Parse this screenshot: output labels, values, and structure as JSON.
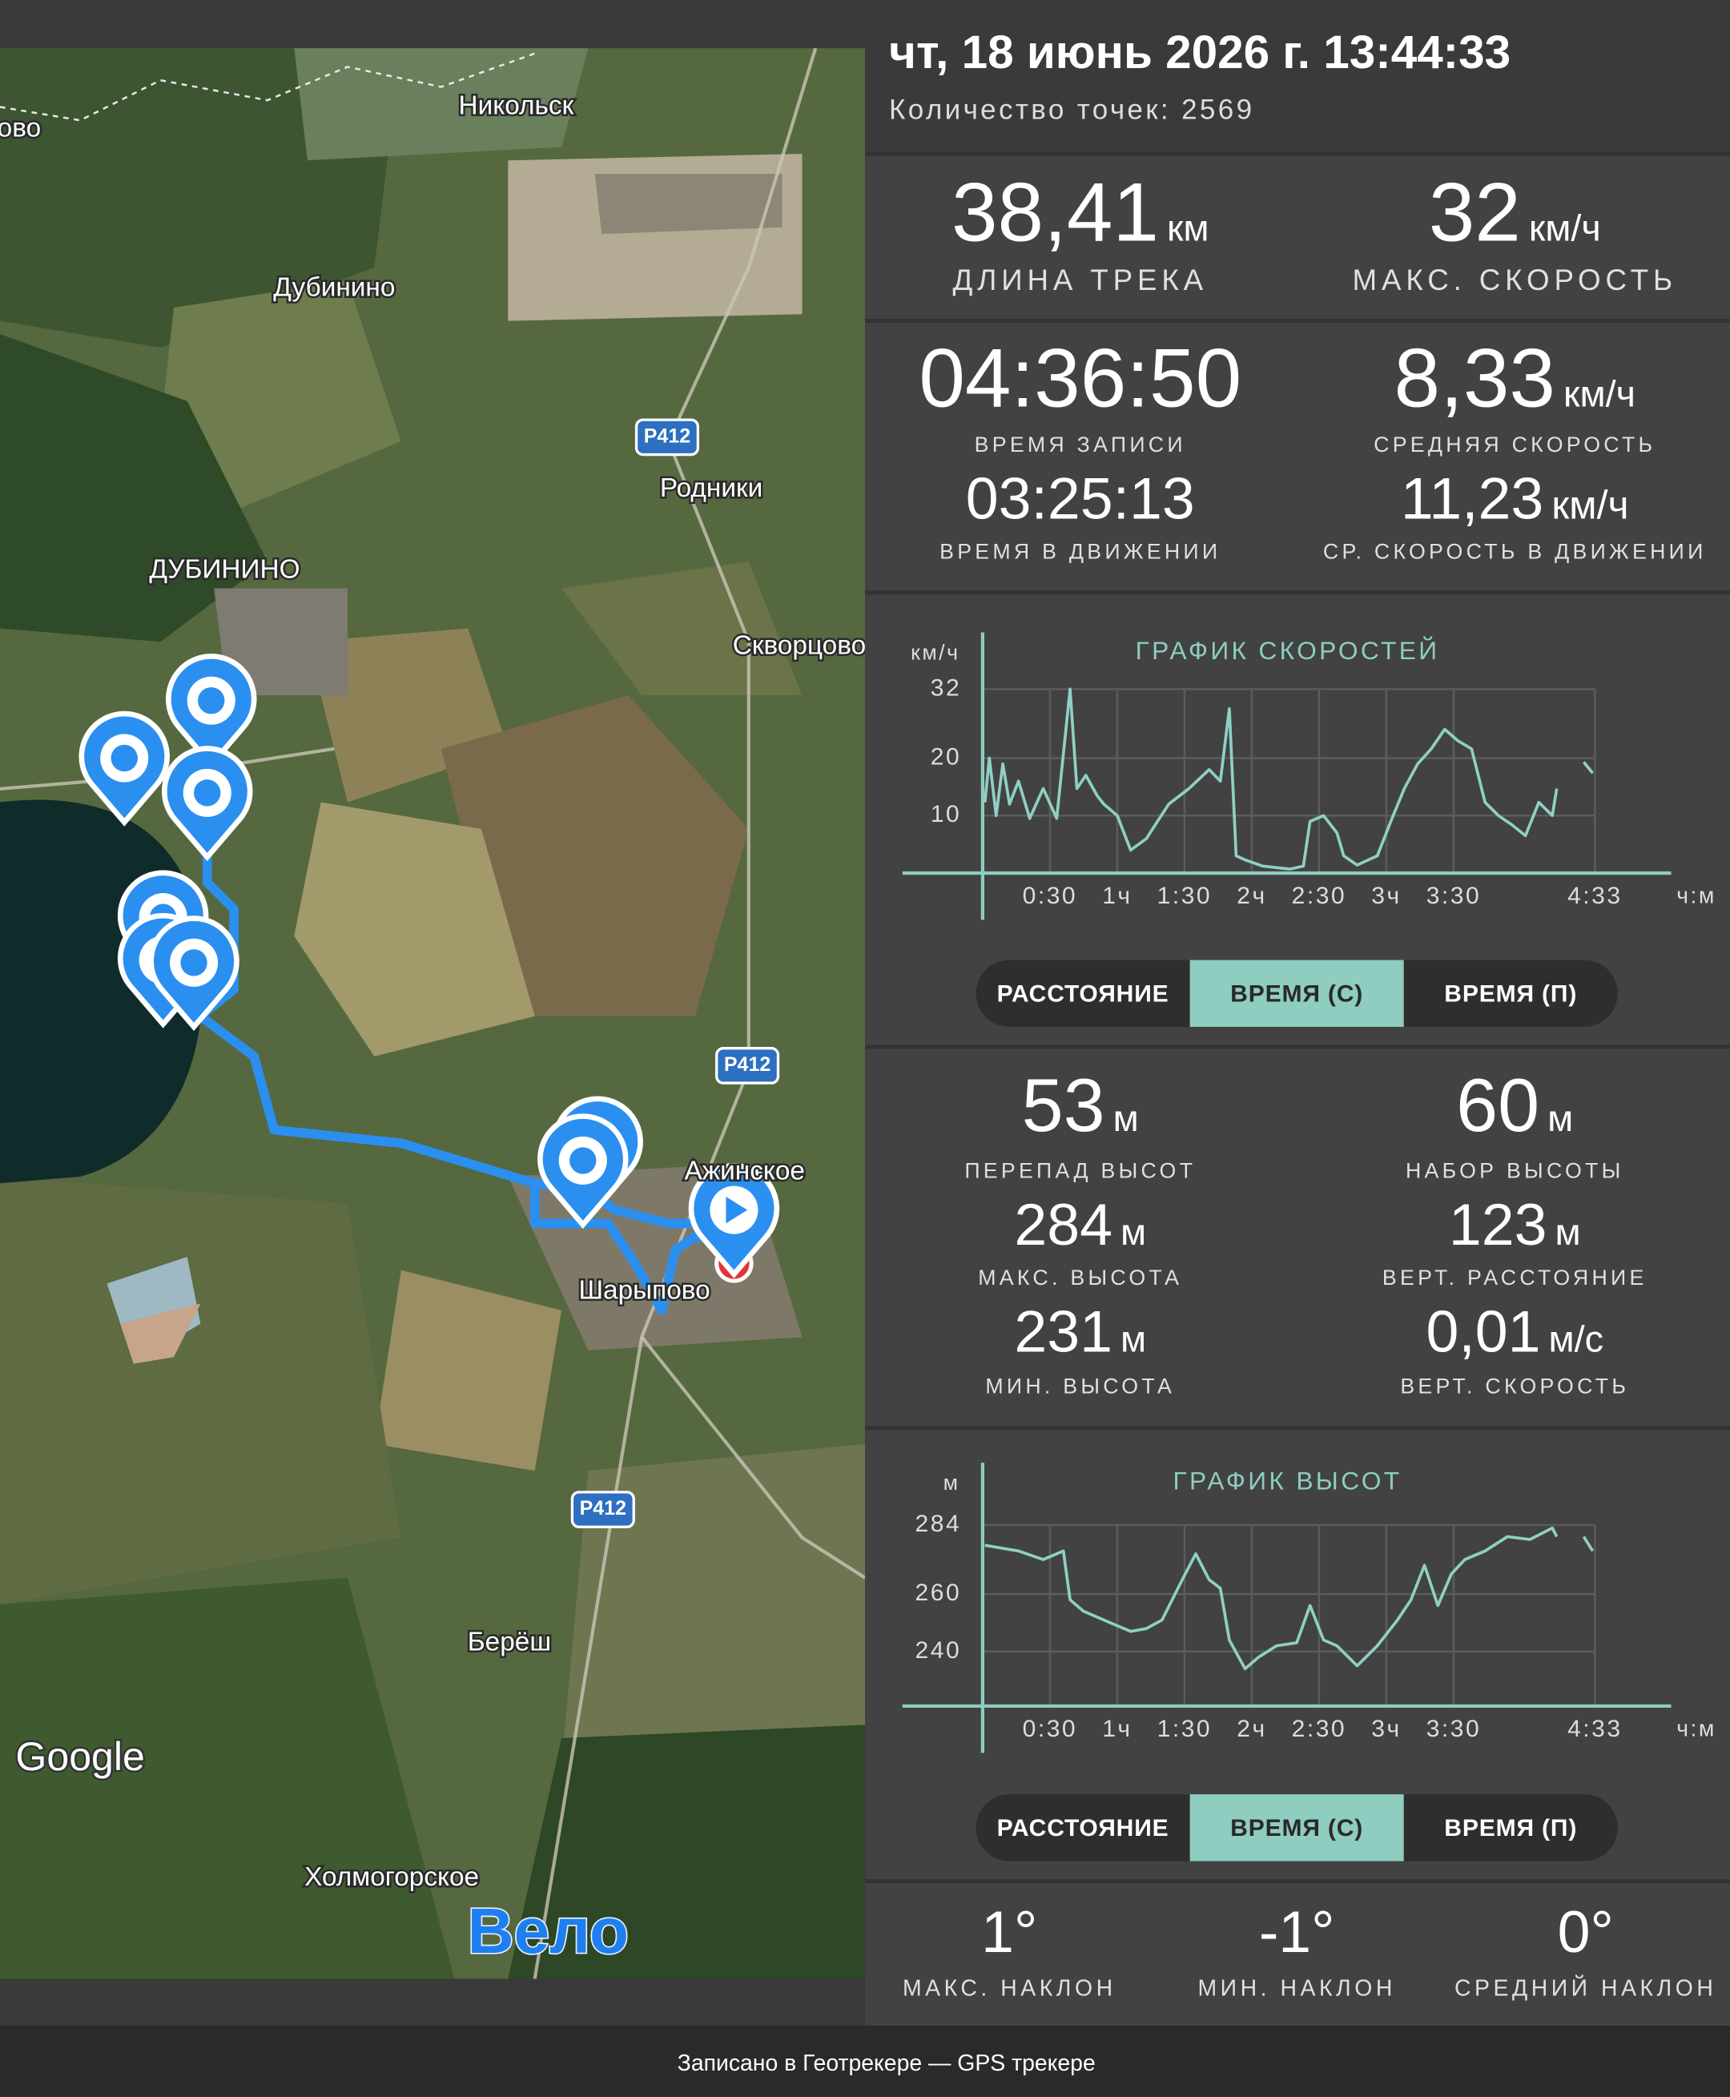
{
  "header": {
    "datetime": "чт, 18 июнь 2026 г. 13:44:33",
    "points": "Количество точек: 2569"
  },
  "summary": [
    {
      "value": "38,41",
      "unit": "км",
      "label": "ДЛИНА ТРЕКА"
    },
    {
      "value": "32",
      "unit": "км/ч",
      "label": "МАКС. СКОРОСТЬ"
    }
  ],
  "time": [
    {
      "value": "04:36:50",
      "label": "ВРЕМЯ ЗАПИСИ"
    },
    {
      "value": "8,33",
      "unit": "км/ч",
      "label": "СРЕДНЯЯ СКОРОСТЬ"
    },
    {
      "value": "03:25:13",
      "label": "ВРЕМЯ В ДВИЖЕНИИ"
    },
    {
      "value": "11,23",
      "unit": "км/ч",
      "label": "СР. СКОРОСТЬ В ДВИЖЕНИИ"
    }
  ],
  "speed_chart": {
    "type": "line",
    "title": "ГРАФИК СКОРОСТЕЙ",
    "y_unit": "км/ч",
    "x_unit": "ч:м",
    "color": "#8fd0c4",
    "xlim": [
      0,
      307
    ],
    "ylim": [
      0,
      40
    ],
    "xticks": [
      {
        "value": 30,
        "label": "0:30"
      },
      {
        "value": 60,
        "label": "1ч"
      },
      {
        "value": 90,
        "label": "1:30"
      },
      {
        "value": 120,
        "label": "2ч"
      },
      {
        "value": 150,
        "label": "2:30"
      },
      {
        "value": 180,
        "label": "3ч"
      },
      {
        "value": 210,
        "label": "3:30"
      },
      {
        "value": 273,
        "label": "4:33"
      }
    ],
    "yticks": [
      10,
      20,
      32
    ],
    "x": [
      1,
      3,
      6,
      9,
      12,
      16,
      21,
      27,
      33,
      39,
      42,
      46,
      51,
      54,
      60,
      66,
      73,
      78,
      83,
      92,
      101,
      106,
      110,
      113,
      117,
      125,
      137,
      143,
      146,
      152,
      158,
      161,
      167,
      176,
      182,
      188,
      194,
      200,
      206,
      212,
      218,
      224,
      230,
      236,
      242,
      248,
      254,
      256,
      262,
      268,
      272
    ],
    "values": [
      12.3,
      20,
      10,
      19,
      12,
      16,
      9.5,
      14.7,
      9.5,
      32,
      14.7,
      17,
      13.5,
      12,
      10,
      4,
      6,
      9,
      12,
      14.7,
      18,
      16,
      28.6,
      3,
      2.3,
      1.2,
      0.7,
      1.2,
      9,
      10,
      7,
      3,
      1.4,
      3,
      9,
      14.7,
      19,
      21.6,
      25,
      23,
      21.6,
      12.3,
      10,
      8.4,
      6.5,
      12.3,
      10,
      14.7,
      null,
      19.3,
      17.4
    ]
  },
  "speed_tabs": {
    "options": [
      "РАССТОЯНИЕ",
      "ВРЕМЯ (С)",
      "ВРЕМЯ (П)"
    ],
    "selected": 1
  },
  "altitude": [
    {
      "value": "53",
      "unit": "м",
      "label": "ПЕРЕПАД ВЫСОТ"
    },
    {
      "value": "60",
      "unit": "м",
      "label": "НАБОР ВЫСОТЫ"
    },
    {
      "value": "284",
      "unit": "м",
      "label": "МАКС. ВЫСОТА"
    },
    {
      "value": "123",
      "unit": "м",
      "label": "ВЕРТ. РАССТОЯНИЕ"
    },
    {
      "value": "231",
      "unit": "м",
      "label": "МИН. ВЫСОТА"
    },
    {
      "value": "0,01",
      "unit": "м/с",
      "label": "ВЕРТ. СКОРОСТЬ"
    }
  ],
  "altitude_chart": {
    "type": "line",
    "title": "ГРАФИК ВЫСОТ",
    "y_unit": "м",
    "x_unit": "ч:м",
    "color": "#8fd0c4",
    "xlim": [
      0,
      307
    ],
    "ylim": [
      221,
      302
    ],
    "xticks": [
      {
        "value": 30,
        "label": "0:30"
      },
      {
        "value": 60,
        "label": "1ч"
      },
      {
        "value": 90,
        "label": "1:30"
      },
      {
        "value": 120,
        "label": "2ч"
      },
      {
        "value": 150,
        "label": "2:30"
      },
      {
        "value": 180,
        "label": "3ч"
      },
      {
        "value": 210,
        "label": "3:30"
      },
      {
        "value": 273,
        "label": "4:33"
      }
    ],
    "yticks": [
      240,
      260,
      284
    ],
    "x": [
      1,
      16,
      27,
      36,
      39,
      45,
      54,
      60,
      66,
      73,
      80,
      89,
      95,
      101,
      106,
      110,
      117,
      123,
      131,
      140,
      146,
      152,
      158,
      167,
      176,
      185,
      191,
      197,
      203,
      209,
      215,
      224,
      234,
      244,
      254,
      256,
      262,
      268,
      272
    ],
    "values": [
      277,
      275,
      272,
      275,
      258,
      254,
      251,
      249,
      247,
      248,
      251,
      265,
      274,
      265,
      262,
      244,
      234,
      238,
      242,
      243,
      256,
      244,
      242,
      235,
      242,
      251,
      258,
      270,
      256,
      267,
      272,
      275,
      280,
      279,
      283,
      280,
      null,
      280,
      275
    ]
  },
  "altitude_tabs": {
    "options": [
      "РАССТОЯНИЕ",
      "ВРЕМЯ (С)",
      "ВРЕМЯ (П)"
    ],
    "selected": 1
  },
  "slope": [
    {
      "value": "1°",
      "label": "МАКС. НАКЛОН"
    },
    {
      "value": "-1°",
      "label": "МИН. НАКЛОН"
    },
    {
      "value": "0°",
      "label": "СРЕДНИЙ НАКЛОН"
    }
  ],
  "map": {
    "labels": [
      "ово",
      "Никольск",
      "Дубинино",
      "Родники",
      "ДУБИНИНО",
      "Скворцово",
      "Ажинское",
      "Шарыпово",
      "Берёш",
      "Холмогорское"
    ],
    "roads": [
      "Р412",
      "Р412",
      "Р412"
    ],
    "logo": "Google",
    "mode": "Вело"
  },
  "footer": "Записано в Геотрекере — GPS трекере"
}
